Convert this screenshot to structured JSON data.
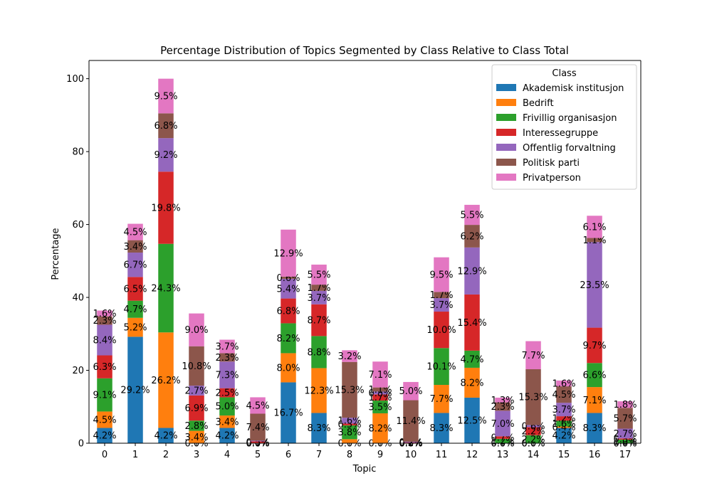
{
  "chart_data": {
    "type": "bar",
    "stacked": true,
    "title": "Percentage Distribution of Topics Segmented by Class Relative to Class Total",
    "xlabel": "Topic",
    "ylabel": "Percentage",
    "ylim": [
      0,
      105
    ],
    "yticks": [
      0,
      20,
      40,
      60,
      80,
      100
    ],
    "categories": [
      "0",
      "1",
      "2",
      "3",
      "4",
      "5",
      "6",
      "7",
      "8",
      "9",
      "10",
      "11",
      "12",
      "13",
      "14",
      "15",
      "16",
      "17"
    ],
    "legend": {
      "title": "Class",
      "position": "top-right"
    },
    "series": [
      {
        "name": "Akademisk institusjon",
        "color": "#1f77b4",
        "values": [
          4.2,
          29.2,
          4.2,
          0.0,
          4.2,
          0.0,
          16.7,
          8.3,
          0.0,
          0.0,
          0.0,
          8.3,
          12.5,
          0.0,
          0.0,
          4.2,
          8.3,
          0.0
        ],
        "labels": [
          "4.2%",
          "29.2%",
          "4.2%",
          "0.0%",
          "4.2%",
          "0.0%",
          "16.7%",
          "8.3%",
          "0.0%",
          "0.0%",
          "0.0%",
          "8.3%",
          "12.5%",
          "0.0%",
          "0.0%",
          "4.2%",
          "8.3%",
          "0.0%"
        ]
      },
      {
        "name": "Bedrift",
        "color": "#ff7f0e",
        "values": [
          4.5,
          5.2,
          26.2,
          3.4,
          3.4,
          0.0,
          8.0,
          12.3,
          1.1,
          8.2,
          0.0,
          7.7,
          8.2,
          0.0,
          0.0,
          0.4,
          7.1,
          0.0
        ],
        "labels": [
          "4.5%",
          "5.2%",
          "26.2%",
          "3.4%",
          "3.4%",
          "0.0%",
          "8.0%",
          "12.3%",
          "",
          "8.2%",
          "0.0%",
          "7.7%",
          "8.2%",
          "0.0%",
          "0.0%",
          "0.4%",
          "7.1%",
          "0.0%"
        ]
      },
      {
        "name": "Frivillig organisasjon",
        "color": "#2ca02c",
        "values": [
          9.1,
          4.7,
          24.3,
          2.8,
          5.0,
          0.0,
          8.2,
          8.8,
          3.8,
          3.5,
          0.0,
          10.1,
          4.7,
          1.2,
          2.2,
          1.6,
          6.6,
          1.0
        ],
        "labels": [
          "9.1%",
          "4.7%",
          "24.3%",
          "2.8%",
          "5.0%",
          "0.0%",
          "8.2%",
          "8.8%",
          "3.8%",
          "3.5%",
          "0.0%",
          "10.1%",
          "4.7%",
          "1.2%",
          "2.2%",
          "1.6%",
          "6.6%",
          "1.0%"
        ]
      },
      {
        "name": "Interessegruppe",
        "color": "#d62728",
        "values": [
          6.3,
          6.5,
          19.8,
          6.9,
          2.5,
          0.5,
          6.8,
          8.7,
          0.5,
          1.7,
          0.2,
          10.0,
          15.4,
          0.7,
          2.2,
          1.2,
          9.7,
          0.3
        ],
        "labels": [
          "6.3%",
          "6.5%",
          "19.8%",
          "6.9%",
          "2.5%",
          "0.5%",
          "6.8%",
          "8.7%",
          "0.5%",
          "1.7%",
          "0.2%",
          "10.0%",
          "15.4%",
          "0.7%",
          "2.2%",
          "1.2%",
          "9.7%",
          "0.3%"
        ]
      },
      {
        "name": "Offentlig forvaltning",
        "color": "#9467bd",
        "values": [
          8.4,
          6.7,
          9.2,
          2.7,
          7.3,
          0.2,
          5.4,
          3.7,
          1.6,
          0.8,
          0.2,
          3.7,
          12.9,
          7.0,
          0.6,
          3.7,
          23.5,
          2.7
        ],
        "labels": [
          "8.4%",
          "6.7%",
          "9.2%",
          "2.7%",
          "7.3%",
          "",
          "5.4%",
          "3.7%",
          "1.6%",
          "0.8%",
          "0.2%",
          "3.7%",
          "12.9%",
          "7.0%",
          "0.6%",
          "3.7%",
          "23.5%",
          "2.7%"
        ]
      },
      {
        "name": "Politisk parti",
        "color": "#8c564b",
        "values": [
          2.3,
          3.4,
          6.8,
          10.8,
          2.3,
          7.4,
          0.6,
          1.7,
          15.3,
          1.1,
          11.4,
          1.7,
          6.2,
          2.3,
          15.3,
          4.5,
          1.1,
          5.7
        ],
        "labels": [
          "2.3%",
          "3.4%",
          "6.8%",
          "10.8%",
          "2.3%",
          "7.4%",
          "0.6%",
          "1.7%",
          "15.3%",
          "1.1%",
          "11.4%",
          "1.7%",
          "6.2%",
          "2.3%",
          "15.3%",
          "4.5%",
          "1.1%",
          "5.7%"
        ]
      },
      {
        "name": "Privatperson",
        "color": "#e377c2",
        "values": [
          1.6,
          4.5,
          9.5,
          9.0,
          3.7,
          4.5,
          12.9,
          5.5,
          3.2,
          7.1,
          5.0,
          9.5,
          5.5,
          1.3,
          7.7,
          1.6,
          6.1,
          1.8
        ],
        "labels": [
          "1.6%",
          "4.5%",
          "9.5%",
          "9.0%",
          "3.7%",
          "4.5%",
          "12.9%",
          "5.5%",
          "3.2%",
          "7.1%",
          "5.0%",
          "9.5%",
          "5.5%",
          "1.3%",
          "7.7%",
          "1.6%",
          "6.1%",
          "1.8%"
        ]
      }
    ]
  }
}
